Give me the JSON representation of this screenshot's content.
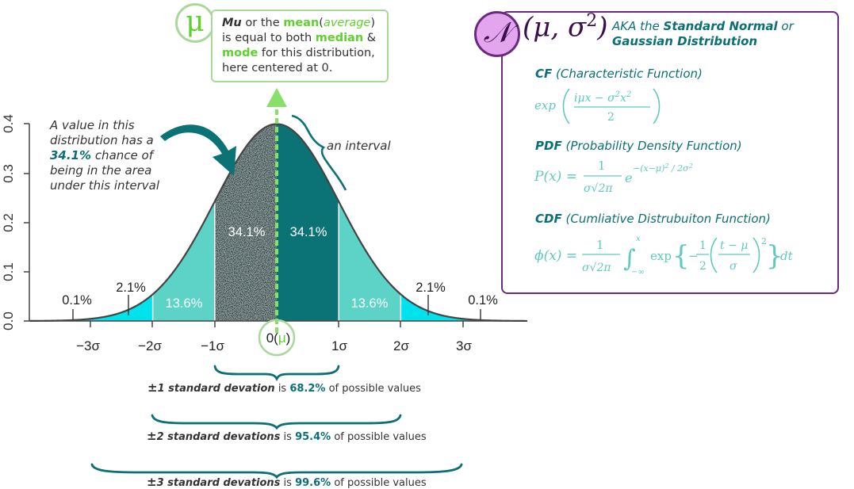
{
  "y_axis": {
    "ticks": [
      "0.0",
      "0.1",
      "0.2",
      "0.3",
      "0.4"
    ]
  },
  "x_axis": {
    "ticks": [
      "−3σ",
      "−2σ",
      "−1σ",
      "1σ",
      "2σ",
      "3σ"
    ],
    "center_label": "0(",
    "center_mu": "μ",
    "center_close": ")"
  },
  "regions": {
    "tail_left": "0.1%",
    "tail_right": "0.1%",
    "second_left": "2.1%",
    "second_right": "2.1%",
    "first_left": "13.6%",
    "first_right": "13.6%",
    "center_left": "34.1%",
    "center_right": "34.1%"
  },
  "annotation": {
    "line1": "A value in this",
    "line2": "distribution has a",
    "percent": "34.1%",
    "line3_rest": " chance of",
    "line4": "being in the  area",
    "line5": "under this interval",
    "interval_label": "an interval"
  },
  "mu_callout": {
    "symbol": "μ",
    "mu": "Mu",
    "t1": " or the ",
    "mean": "mean",
    "paren_open": "(",
    "average": "average",
    "paren_close": ")",
    "t2": "is equal to both ",
    "median": "median",
    "amp": " &",
    "mode": "mode",
    "t3": " for this distribution,",
    "t4": "here centered at 0."
  },
  "formula_panel": {
    "symbol": "𝒩",
    "params": "(μ, σ",
    "params_sup": "2",
    "params_close": ")",
    "aka_prefix": "AKA the ",
    "aka_bold1": "Standard Normal",
    "aka_or": " or",
    "aka_bold2": "Gaussian Distribution",
    "cf_abbr": "CF",
    "cf_full": " (Characteristic Function)",
    "pdf_abbr": "PDF",
    "pdf_full": " (Probability Density Function)",
    "cdf_abbr": "CDF",
    "cdf_full": " (Cumliative Distrubuiton Function)"
  },
  "std_devs": [
    {
      "pm": "±",
      "bold": "1 standard devation",
      "is": " is ",
      "pct": "68.2%",
      "rest": " of possible values"
    },
    {
      "pm": "±",
      "bold": "2 standard devations",
      "is": " is ",
      "pct": "95.4%",
      "rest": " of possible values"
    },
    {
      "pm": "±",
      "bold": "3 standard devations",
      "is": " is ",
      "pct": "99.6%",
      "rest": " of possible values"
    }
  ],
  "colors": {
    "cyan": "#00e3ec",
    "teal_light": "#5dd3c7",
    "teal_dark": "#0b7276",
    "green": "#86e06a",
    "purple": "#6b2a7f",
    "text_teal": "#0c6f75"
  }
}
